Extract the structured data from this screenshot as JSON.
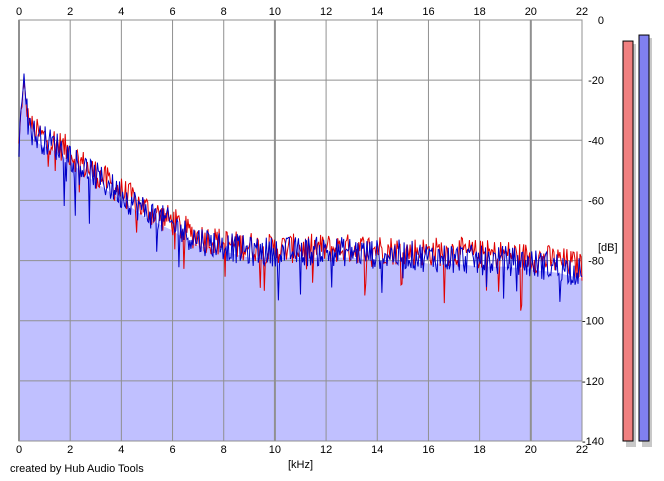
{
  "credit": "created by Hub Audio Tools",
  "chart_data": {
    "type": "line",
    "xlabel": "[kHz]",
    "ylabel": "[dB]",
    "xlim": [
      0,
      22
    ],
    "ylim": [
      -140,
      0
    ],
    "x_ticks": [
      0,
      2,
      4,
      6,
      8,
      10,
      12,
      14,
      16,
      18,
      20,
      22
    ],
    "y_ticks": [
      0,
      -20,
      -40,
      -60,
      -80,
      -100,
      -120,
      -140
    ],
    "y_tick_labels": [
      "0",
      "-20",
      "-40",
      "-60",
      "-80",
      "-100",
      "-120",
      "-140"
    ],
    "grid": true,
    "x": [
      0.0,
      0.1,
      0.2,
      0.3,
      0.5,
      0.75,
      1.0,
      1.5,
      2.0,
      2.5,
      3.0,
      3.5,
      4.0,
      4.5,
      5.0,
      5.5,
      6.0,
      6.5,
      7.0,
      7.5,
      8.0,
      8.5,
      9.0,
      9.5,
      10.0,
      11.0,
      12.0,
      13.0,
      14.0,
      15.0,
      16.0,
      17.0,
      18.0,
      19.0,
      20.0,
      21.0,
      22.0
    ],
    "series": [
      {
        "color": "#e00000",
        "values": [
          -42,
          -28,
          -22,
          -30,
          -36,
          -38,
          -39,
          -41,
          -44,
          -48,
          -51,
          -54,
          -57,
          -60,
          -63,
          -65,
          -67,
          -70,
          -72,
          -73,
          -74,
          -75,
          -75,
          -76,
          -76,
          -76,
          -76,
          -76,
          -76,
          -77,
          -77,
          -77,
          -78,
          -78,
          -79,
          -80,
          -82
        ]
      },
      {
        "color": "#0000c8",
        "values": [
          -44,
          -26,
          -17,
          -28,
          -37,
          -39,
          -40,
          -42,
          -45,
          -49,
          -52,
          -55,
          -58,
          -61,
          -64,
          -66,
          -68,
          -71,
          -73,
          -74,
          -75,
          -76,
          -77,
          -77,
          -77,
          -77,
          -77,
          -77,
          -78,
          -78,
          -79,
          -79,
          -80,
          -80,
          -81,
          -82,
          -84
        ]
      }
    ],
    "fill_color": "#c0c0ff",
    "level_meters": [
      {
        "color": "#f08080",
        "value": -7
      },
      {
        "color": "#8080f0",
        "value": -5
      }
    ]
  }
}
